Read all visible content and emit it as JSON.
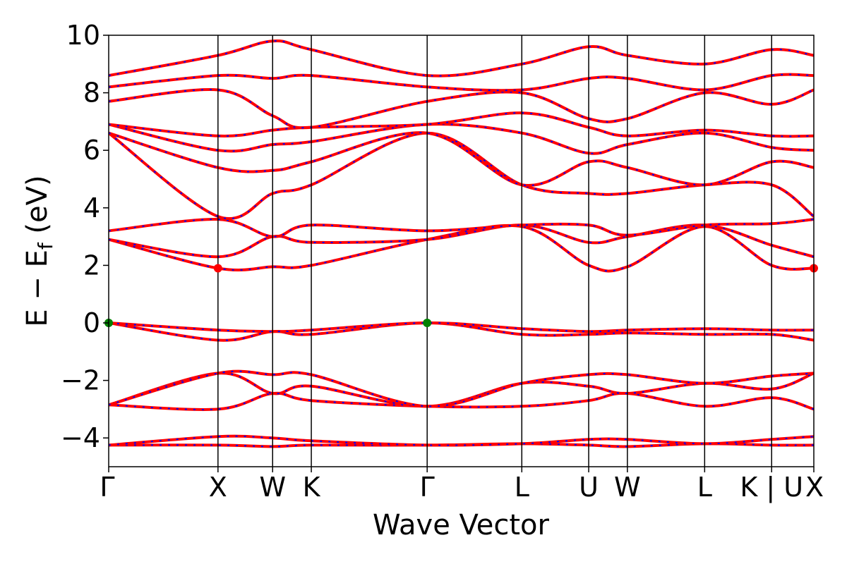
{
  "chart_data": {
    "type": "line",
    "title": "",
    "xlabel": "Wave Vector",
    "ylabel": "E − E",
    "ylabel_sub": "f",
    "ylabel_unit": " (eV)",
    "ylim": [
      -5,
      10
    ],
    "yticks": [
      -4,
      -2,
      0,
      2,
      4,
      6,
      8,
      10
    ],
    "ytick_labels": [
      "−4",
      "−2",
      "0",
      "2",
      "4",
      "6",
      "8",
      "10"
    ],
    "xlim": [
      0,
      6.452
    ],
    "kpoints": [
      {
        "label": "Γ",
        "x": 0.0
      },
      {
        "label": "X",
        "x": 1.0
      },
      {
        "label": "W",
        "x": 1.5
      },
      {
        "label": "K",
        "x": 1.854
      },
      {
        "label": "Γ",
        "x": 2.914
      },
      {
        "label": "L",
        "x": 3.78
      },
      {
        "label": "U",
        "x": 4.392
      },
      {
        "label": "W",
        "x": 4.746
      },
      {
        "label": "L",
        "x": 5.453
      },
      {
        "label": "K | U",
        "x": 6.066
      },
      {
        "label": "X",
        "x": 6.452
      }
    ],
    "colors": {
      "band": "#ff0000",
      "band_dash": "#0000ff",
      "vbm": "#008000",
      "cbm": "#ff0000",
      "vline": "#000000"
    },
    "markers": [
      {
        "kind": "vbm",
        "x": 0.0,
        "y": 0.0
      },
      {
        "kind": "vbm",
        "x": 2.914,
        "y": 0.0
      },
      {
        "kind": "cbm",
        "x": 1.0,
        "y": 1.9
      },
      {
        "kind": "cbm",
        "x": 6.452,
        "y": 1.9
      }
    ],
    "series": [
      {
        "x": [
          0,
          1.0,
          1.5,
          1.854,
          2.914,
          3.78,
          4.392,
          4.746,
          5.453,
          6.066,
          6.452
        ],
        "y": [
          -4.25,
          -4.25,
          -4.3,
          -4.25,
          -4.25,
          -4.2,
          -4.25,
          -4.3,
          -4.2,
          -4.25,
          -4.25
        ]
      },
      {
        "x": [
          0,
          1.0,
          1.5,
          1.854,
          2.914,
          3.78,
          4.392,
          4.746,
          5.453,
          6.066,
          6.452
        ],
        "y": [
          -4.25,
          -3.95,
          -4.0,
          -4.1,
          -4.25,
          -4.2,
          -4.05,
          -4.05,
          -4.2,
          -4.05,
          -3.95
        ]
      },
      {
        "x": [
          0,
          1.0,
          1.5,
          1.854,
          2.914,
          3.78,
          4.392,
          4.746,
          5.453,
          6.066,
          6.452
        ],
        "y": [
          -2.85,
          -3.0,
          -2.45,
          -2.7,
          -2.9,
          -2.9,
          -2.7,
          -2.45,
          -2.9,
          -2.6,
          -3.0
        ]
      },
      {
        "x": [
          0,
          1.0,
          1.5,
          1.854,
          2.914,
          3.78,
          4.392,
          4.746,
          5.453,
          6.066,
          6.452
        ],
        "y": [
          -2.85,
          -1.75,
          -2.45,
          -2.2,
          -2.9,
          -2.1,
          -2.2,
          -2.45,
          -2.1,
          -2.3,
          -1.75
        ]
      },
      {
        "x": [
          0,
          1.0,
          1.5,
          1.854,
          2.914,
          3.78,
          4.392,
          4.746,
          5.453,
          6.066,
          6.452
        ],
        "y": [
          -2.85,
          -1.75,
          -1.8,
          -1.8,
          -2.9,
          -2.1,
          -1.8,
          -1.8,
          -2.1,
          -1.85,
          -1.75
        ]
      },
      {
        "x": [
          0,
          1.0,
          1.5,
          1.854,
          2.914,
          3.78,
          4.392,
          4.746,
          5.453,
          6.066,
          6.452
        ],
        "y": [
          0.0,
          -0.6,
          -0.3,
          -0.4,
          0.0,
          -0.4,
          -0.4,
          -0.35,
          -0.4,
          -0.4,
          -0.6
        ]
      },
      {
        "x": [
          0,
          1.0,
          1.5,
          1.854,
          2.914,
          3.78,
          4.392,
          4.746,
          5.453,
          6.066,
          6.452
        ],
        "y": [
          0.0,
          -0.25,
          -0.3,
          -0.25,
          0.0,
          -0.2,
          -0.3,
          -0.25,
          -0.2,
          -0.25,
          -0.25
        ]
      },
      {
        "x": [
          0,
          1.0,
          1.5,
          1.854,
          2.914,
          3.78,
          4.392,
          4.746,
          5.453,
          6.066,
          6.452
        ],
        "y": [
          2.9,
          1.9,
          1.95,
          2.0,
          2.9,
          3.35,
          2.0,
          1.95,
          3.35,
          2.0,
          1.9
        ]
      },
      {
        "x": [
          0,
          1.0,
          1.5,
          1.854,
          2.914,
          3.78,
          4.392,
          4.746,
          5.453,
          6.066,
          6.452
        ],
        "y": [
          2.9,
          2.3,
          3.0,
          2.8,
          2.9,
          3.4,
          2.8,
          3.0,
          3.4,
          2.7,
          2.3
        ]
      },
      {
        "x": [
          0,
          1.0,
          1.5,
          1.854,
          2.914,
          3.78,
          4.392,
          4.746,
          5.453,
          6.066,
          6.452
        ],
        "y": [
          3.2,
          3.6,
          3.0,
          3.4,
          3.2,
          3.4,
          3.4,
          3.05,
          3.4,
          3.45,
          3.6
        ]
      },
      {
        "x": [
          0,
          1.0,
          1.5,
          1.854,
          2.914,
          3.78,
          4.392,
          4.746,
          5.453,
          6.066,
          6.452
        ],
        "y": [
          6.6,
          3.7,
          4.5,
          4.8,
          6.6,
          4.8,
          4.5,
          4.5,
          4.8,
          4.8,
          3.7
        ]
      },
      {
        "x": [
          0,
          1.0,
          1.5,
          1.854,
          2.914,
          3.78,
          4.392,
          4.746,
          5.453,
          6.066,
          6.452
        ],
        "y": [
          6.6,
          5.4,
          5.3,
          5.6,
          6.6,
          4.8,
          5.6,
          5.4,
          4.8,
          5.6,
          5.4
        ]
      },
      {
        "x": [
          0,
          1.0,
          1.5,
          1.854,
          2.914,
          3.78,
          4.392,
          4.746,
          5.453,
          6.066,
          6.452
        ],
        "y": [
          6.9,
          6.0,
          6.2,
          6.3,
          6.9,
          6.6,
          5.9,
          6.2,
          6.6,
          6.1,
          6.0
        ]
      },
      {
        "x": [
          0,
          1.0,
          1.5,
          1.854,
          2.914,
          3.78,
          4.392,
          4.746,
          5.453,
          6.066,
          6.452
        ],
        "y": [
          6.9,
          6.5,
          6.7,
          6.8,
          6.9,
          7.3,
          6.8,
          6.5,
          6.7,
          6.5,
          6.5
        ]
      },
      {
        "x": [
          0,
          1.0,
          1.5,
          1.854,
          2.914,
          3.78,
          4.392,
          4.746,
          5.453,
          6.066,
          6.452
        ],
        "y": [
          7.7,
          8.1,
          7.2,
          6.8,
          7.7,
          8.0,
          7.1,
          7.1,
          8.0,
          7.6,
          8.1
        ]
      },
      {
        "x": [
          0,
          1.0,
          1.5,
          1.854,
          2.914,
          3.78,
          4.392,
          4.746,
          5.453,
          6.066,
          6.452
        ],
        "y": [
          8.2,
          8.6,
          8.5,
          8.6,
          8.2,
          8.1,
          8.5,
          8.5,
          8.1,
          8.6,
          8.6
        ]
      },
      {
        "x": [
          0,
          1.0,
          1.5,
          1.854,
          2.914,
          3.78,
          4.392,
          4.746,
          5.453,
          6.066,
          6.452
        ],
        "y": [
          8.6,
          9.3,
          9.8,
          9.5,
          8.6,
          9.0,
          9.6,
          9.3,
          9.0,
          9.5,
          9.3
        ]
      }
    ]
  }
}
